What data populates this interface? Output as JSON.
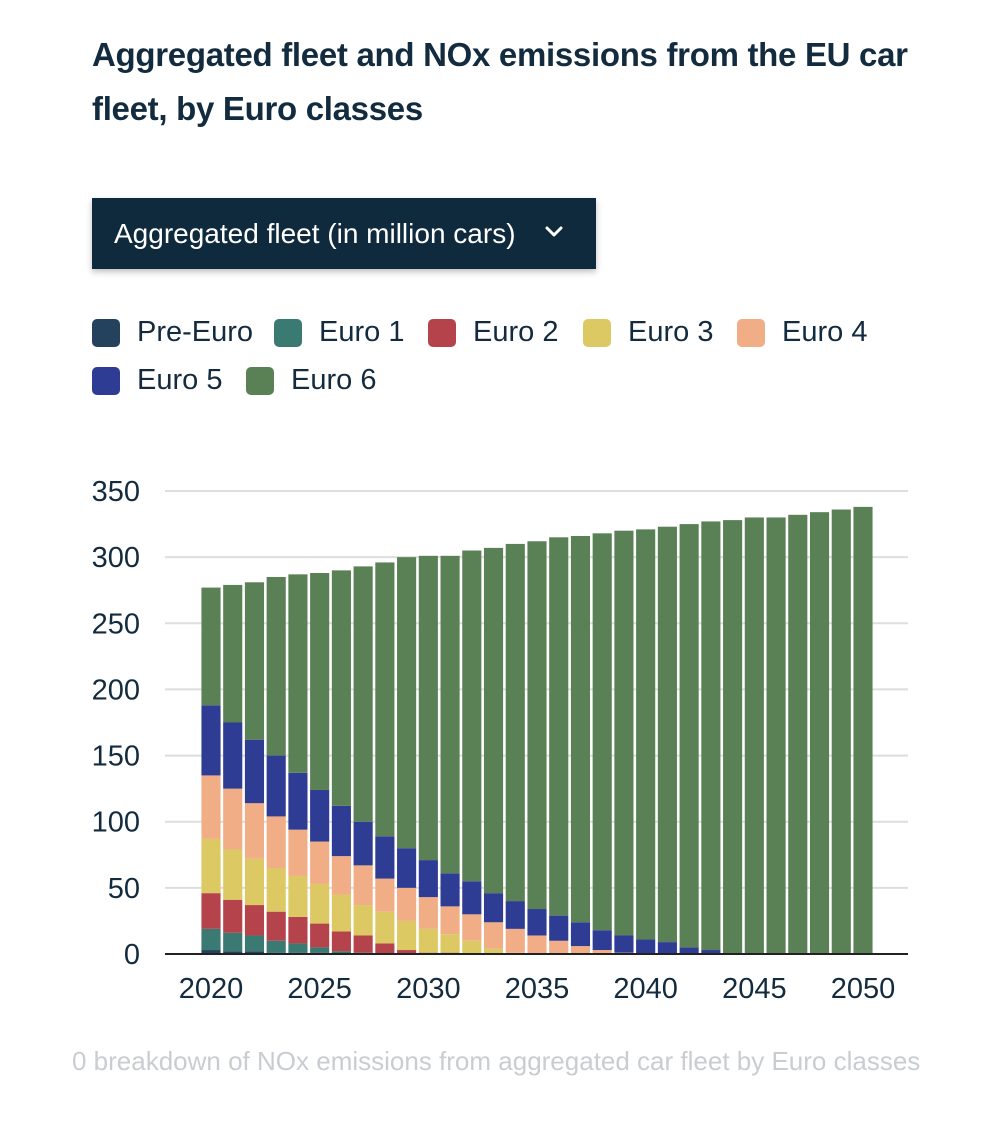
{
  "title": "Aggregated fleet and NOx emissions from the EU car fleet, by Euro classes",
  "dropdown": {
    "selected": "Aggregated fleet (in million cars)"
  },
  "caption": "0 breakdown of NOx emissions from aggregated car fleet by Euro classes",
  "chart_data": {
    "type": "bar",
    "stacked": true,
    "x": [
      2020,
      2021,
      2022,
      2023,
      2024,
      2025,
      2026,
      2027,
      2028,
      2029,
      2030,
      2031,
      2032,
      2033,
      2034,
      2035,
      2036,
      2037,
      2038,
      2039,
      2040,
      2041,
      2042,
      2043,
      2044,
      2045,
      2046,
      2047,
      2048,
      2049,
      2050
    ],
    "xticks": [
      2020,
      2025,
      2030,
      2035,
      2040,
      2045,
      2050
    ],
    "yticks": [
      0,
      50,
      100,
      150,
      200,
      250,
      300,
      350
    ],
    "ylim": [
      0,
      350
    ],
    "grid": true,
    "legend_position": "top",
    "series": [
      {
        "name": "Pre-Euro",
        "color": "#24425e",
        "values": [
          3,
          2,
          2,
          1,
          1,
          1,
          0,
          0,
          0,
          0,
          0,
          0,
          0,
          0,
          0,
          0,
          0,
          0,
          0,
          0,
          0,
          0,
          0,
          0,
          0,
          0,
          0,
          0,
          0,
          0,
          0
        ]
      },
      {
        "name": "Euro 1",
        "color": "#3a7a73",
        "values": [
          16,
          14,
          12,
          9,
          7,
          4,
          2,
          1,
          0,
          0,
          0,
          0,
          0,
          0,
          0,
          0,
          0,
          0,
          0,
          0,
          0,
          0,
          0,
          0,
          0,
          0,
          0,
          0,
          0,
          0,
          0
        ]
      },
      {
        "name": "Euro 2",
        "color": "#b5434b",
        "values": [
          27,
          25,
          23,
          22,
          20,
          18,
          15,
          13,
          8,
          3,
          1,
          1,
          0,
          0,
          0,
          0,
          0,
          0,
          0,
          0,
          0,
          0,
          0,
          0,
          0,
          0,
          0,
          0,
          0,
          0,
          0
        ]
      },
      {
        "name": "Euro 3",
        "color": "#dcc964",
        "values": [
          41,
          38,
          35,
          33,
          31,
          30,
          28,
          23,
          24,
          22,
          18,
          14,
          10,
          4,
          1,
          0,
          0,
          0,
          0,
          0,
          0,
          0,
          0,
          0,
          0,
          0,
          0,
          0,
          0,
          0,
          0
        ]
      },
      {
        "name": "Euro 4",
        "color": "#f0ad86",
        "values": [
          48,
          46,
          42,
          39,
          35,
          32,
          29,
          30,
          25,
          25,
          24,
          21,
          20,
          20,
          18,
          14,
          10,
          6,
          3,
          1,
          0,
          0,
          0,
          0,
          0,
          0,
          0,
          0,
          0,
          0,
          0
        ]
      },
      {
        "name": "Euro 5",
        "color": "#2f3c93",
        "values": [
          53,
          50,
          48,
          46,
          43,
          39,
          38,
          33,
          32,
          30,
          28,
          25,
          25,
          22,
          21,
          20,
          19,
          18,
          15,
          13,
          11,
          9,
          5,
          3,
          0,
          0,
          0,
          0,
          0,
          0,
          0
        ]
      },
      {
        "name": "Euro 6",
        "color": "#5a8156",
        "values": [
          89,
          104,
          119,
          135,
          150,
          164,
          178,
          193,
          207,
          220,
          230,
          240,
          250,
          261,
          270,
          278,
          286,
          292,
          300,
          306,
          310,
          314,
          320,
          324,
          328,
          330,
          330,
          332,
          334,
          336,
          338
        ]
      }
    ]
  }
}
